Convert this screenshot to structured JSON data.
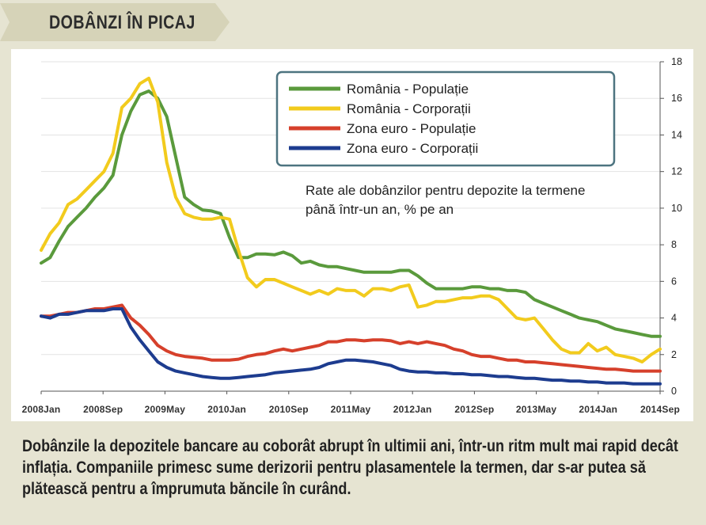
{
  "header": {
    "title": "DOBÂNZI ÎN PICAJ"
  },
  "caption": "Dobânzile la depozitele bancare au coborât abrupt în ultimii ani, într-un ritm mult mai rapid decât inflația. Companiile primesc sume derizorii pentru plasamentele la termen, dar s-ar putea să plătească pentru a împrumuta băncile în curând.",
  "colors": {
    "green": "#5a9a3c",
    "yellow": "#f2cb1d",
    "red": "#d6402b",
    "blue": "#1d3c8f",
    "legend_border": "#4d7480"
  },
  "chart_data": {
    "type": "line",
    "annotation": "Rate ale dobânzilor pentru depozite la termene până într-un an, % pe an",
    "annotation_lines": [
      "Rate ale dobânzilor pentru depozite la termene",
      "până într-un an, % pe an"
    ],
    "y_axis_position": "right",
    "ylim": [
      0,
      18
    ],
    "y_ticks": [
      0,
      2,
      4,
      6,
      8,
      10,
      12,
      14,
      16,
      18
    ],
    "x_tick_labels": [
      "2008Jan",
      "2008Sep",
      "2009May",
      "2010Jan",
      "2010Sep",
      "2011May",
      "2012Jan",
      "2012Sep",
      "2013May",
      "2014Jan",
      "2014Sep"
    ],
    "x_ticks_months_index": [
      0,
      8,
      16,
      24,
      32,
      40,
      48,
      56,
      64,
      72,
      80
    ],
    "x_range_months_index": [
      0,
      80
    ],
    "legend_position": "top-right",
    "grid": "horizontal",
    "series": [
      {
        "name": "România - Populație",
        "color": "#5a9a3c",
        "values": [
          7.0,
          7.3,
          8.2,
          9.0,
          9.5,
          10.0,
          10.6,
          11.1,
          11.8,
          14.0,
          15.3,
          16.2,
          16.4,
          16.0,
          15.0,
          12.8,
          10.6,
          10.2,
          9.9,
          9.85,
          9.7,
          8.4,
          7.3,
          7.3,
          7.5,
          7.5,
          7.45,
          7.6,
          7.4,
          7.0,
          7.1,
          6.9,
          6.8,
          6.8,
          6.7,
          6.6,
          6.5,
          6.5,
          6.5,
          6.5,
          6.6,
          6.6,
          6.3,
          5.9,
          5.6,
          5.6,
          5.6,
          5.6,
          5.7,
          5.7,
          5.6,
          5.6,
          5.5,
          5.5,
          5.4,
          5.0,
          4.8,
          4.6,
          4.4,
          4.2,
          4.0,
          3.9,
          3.8,
          3.6,
          3.4,
          3.3,
          3.2,
          3.1,
          3.0,
          3.0
        ]
      },
      {
        "name": "România - Corporații",
        "color": "#f2cb1d",
        "values": [
          7.7,
          8.6,
          9.2,
          10.2,
          10.5,
          11.0,
          11.5,
          12.0,
          13.0,
          15.5,
          16.0,
          16.8,
          17.1,
          15.8,
          12.5,
          10.6,
          9.7,
          9.5,
          9.4,
          9.4,
          9.5,
          9.4,
          7.7,
          6.2,
          5.7,
          6.1,
          6.1,
          5.9,
          5.7,
          5.5,
          5.3,
          5.5,
          5.3,
          5.6,
          5.5,
          5.5,
          5.2,
          5.6,
          5.6,
          5.5,
          5.7,
          5.8,
          4.6,
          4.7,
          4.9,
          4.9,
          5.0,
          5.1,
          5.1,
          5.2,
          5.2,
          5.0,
          4.5,
          4.0,
          3.9,
          4.0,
          3.4,
          2.8,
          2.3,
          2.1,
          2.1,
          2.6,
          2.2,
          2.4,
          2.0,
          1.9,
          1.8,
          1.6,
          2.0,
          2.3
        ]
      },
      {
        "name": "Zona euro - Populație",
        "color": "#d6402b",
        "values": [
          4.1,
          4.1,
          4.2,
          4.3,
          4.3,
          4.4,
          4.5,
          4.5,
          4.6,
          4.7,
          4.0,
          3.6,
          3.1,
          2.5,
          2.2,
          2.0,
          1.9,
          1.85,
          1.8,
          1.7,
          1.7,
          1.7,
          1.75,
          1.9,
          2.0,
          2.05,
          2.2,
          2.3,
          2.2,
          2.3,
          2.4,
          2.5,
          2.7,
          2.7,
          2.8,
          2.8,
          2.75,
          2.8,
          2.8,
          2.75,
          2.6,
          2.7,
          2.6,
          2.7,
          2.6,
          2.5,
          2.3,
          2.2,
          2.0,
          1.9,
          1.9,
          1.8,
          1.7,
          1.7,
          1.6,
          1.6,
          1.55,
          1.5,
          1.45,
          1.4,
          1.35,
          1.3,
          1.25,
          1.2,
          1.2,
          1.15,
          1.1,
          1.1,
          1.1,
          1.1
        ]
      },
      {
        "name": "Zona euro - Corporații",
        "color": "#1d3c8f",
        "values": [
          4.1,
          4.0,
          4.2,
          4.2,
          4.3,
          4.4,
          4.4,
          4.4,
          4.5,
          4.5,
          3.5,
          2.8,
          2.2,
          1.6,
          1.3,
          1.1,
          1.0,
          0.9,
          0.8,
          0.75,
          0.7,
          0.7,
          0.75,
          0.8,
          0.85,
          0.9,
          1.0,
          1.05,
          1.1,
          1.15,
          1.2,
          1.3,
          1.5,
          1.6,
          1.7,
          1.7,
          1.65,
          1.6,
          1.5,
          1.4,
          1.2,
          1.1,
          1.05,
          1.05,
          1.0,
          1.0,
          0.95,
          0.95,
          0.9,
          0.9,
          0.85,
          0.8,
          0.8,
          0.75,
          0.7,
          0.7,
          0.65,
          0.6,
          0.6,
          0.55,
          0.55,
          0.5,
          0.5,
          0.45,
          0.45,
          0.45,
          0.4,
          0.4,
          0.4,
          0.4
        ]
      }
    ]
  }
}
